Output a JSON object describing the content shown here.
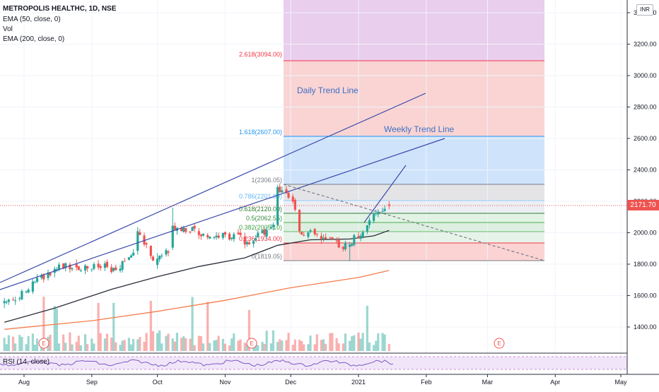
{
  "header": {
    "symbol_line": "METROPOLIS HEALTHC, 1D, NSE",
    "indicator_1": "EMA (50, close, 0)",
    "indicator_2": "Vol",
    "indicator_3": "EMA (200, close, 0)"
  },
  "rsi_label": "RSI (14, close)",
  "currency_button": "INR",
  "last_price_label": "2171.70",
  "chart_data": {
    "type": "candlestick",
    "title": "METROPOLIS HEALTHC, 1D, NSE",
    "xlabel": "",
    "ylabel": "",
    "ylim": [
      1180,
      3640
    ],
    "x_ticks": [
      "Aug",
      "Sep",
      "Oct",
      "Nov",
      "Dec",
      "2021",
      "Feb",
      "Mar",
      "Apr",
      "May"
    ],
    "y_ticks": [
      1400,
      1600,
      1800,
      2000,
      2200,
      2400,
      2600,
      2800,
      3000,
      3200,
      3400
    ],
    "y_tick_labels": [
      "1400.00",
      "1600.00",
      "1800.00",
      "2000.00",
      "2200.00",
      "2400.00",
      "2600.00",
      "2800.00",
      "3000.00",
      "3200.00",
      "3400.00"
    ],
    "last_price": 2171.7,
    "series": [
      {
        "name": "EMA (50, close, 0)",
        "color": "#2a2e39",
        "points": [
          [
            "2020-07-23",
            1430
          ],
          [
            "2020-08-15",
            1520
          ],
          [
            "2020-09-10",
            1640
          ],
          [
            "2020-10-01",
            1720
          ],
          [
            "2020-10-20",
            1785
          ],
          [
            "2020-11-10",
            1840
          ],
          [
            "2020-11-25",
            1920
          ],
          [
            "2020-12-10",
            1955
          ],
          [
            "2020-12-28",
            1960
          ],
          [
            "2021-01-08",
            1980
          ],
          [
            "2021-01-15",
            2015
          ]
        ]
      },
      {
        "name": "EMA (200, close, 0)",
        "color": "#f57c4c",
        "points": [
          [
            "2020-07-23",
            1385
          ],
          [
            "2020-09-01",
            1440
          ],
          [
            "2020-10-01",
            1500
          ],
          [
            "2020-11-01",
            1570
          ],
          [
            "2020-12-01",
            1650
          ],
          [
            "2021-01-01",
            1715
          ],
          [
            "2021-01-15",
            1760
          ]
        ]
      }
    ],
    "candles": [
      {
        "date": "2020-07-23",
        "o": 1552,
        "h": 1585,
        "l": 1520,
        "c": 1565
      },
      {
        "date": "2020-08-05",
        "o": 1625,
        "h": 1705,
        "l": 1610,
        "c": 1690
      },
      {
        "date": "2020-08-15",
        "o": 1745,
        "h": 1785,
        "l": 1715,
        "c": 1770
      },
      {
        "date": "2020-08-25",
        "o": 1800,
        "h": 1830,
        "l": 1760,
        "c": 1780
      },
      {
        "date": "2020-09-10",
        "o": 1780,
        "h": 1800,
        "l": 1740,
        "c": 1750
      },
      {
        "date": "2020-09-22",
        "o": 1885,
        "h": 2035,
        "l": 1860,
        "c": 2010
      },
      {
        "date": "2020-10-01",
        "o": 1795,
        "h": 1870,
        "l": 1770,
        "c": 1835
      },
      {
        "date": "2020-10-08",
        "o": 1905,
        "h": 2160,
        "l": 1890,
        "c": 2045
      },
      {
        "date": "2020-10-20",
        "o": 2010,
        "h": 2030,
        "l": 1960,
        "c": 1985
      },
      {
        "date": "2020-11-10",
        "o": 1975,
        "h": 2000,
        "l": 1900,
        "c": 1925
      },
      {
        "date": "2020-11-25",
        "o": 2050,
        "h": 2306,
        "l": 2040,
        "c": 2290
      },
      {
        "date": "2020-12-05",
        "o": 2145,
        "h": 2150,
        "l": 1995,
        "c": 2010
      },
      {
        "date": "2020-12-15",
        "o": 1980,
        "h": 2000,
        "l": 1930,
        "c": 1960
      },
      {
        "date": "2020-12-28",
        "o": 1910,
        "h": 1940,
        "l": 1819,
        "c": 1925
      },
      {
        "date": "2021-01-08",
        "o": 2075,
        "h": 2130,
        "l": 2060,
        "c": 2120
      },
      {
        "date": "2021-01-15",
        "o": 2180,
        "h": 2200,
        "l": 2150,
        "c": 2172
      }
    ],
    "volume_bars": "Vol",
    "fibonacci": [
      {
        "label": "0(1819.05)",
        "value": 1819.05
      },
      {
        "label": "0.236(1934.00)",
        "value": 1934.0
      },
      {
        "label": "0.382(2005.10)",
        "value": 2005.1
      },
      {
        "label": "0.5(2062.55)",
        "value": 2062.55
      },
      {
        "label": "0.618(2120.00)",
        "value": 2120.0
      },
      {
        "label": "0.786(2201.80)",
        "value": 2201.8
      },
      {
        "label": "1(2306.05)",
        "value": 2306.05
      },
      {
        "label": "1.618(2607.00)",
        "value": 2607.0
      },
      {
        "label": "2.618(3094.00)",
        "value": 3094.0
      }
    ],
    "annotations": [
      "Daily Trend Line",
      "Weekly Trend Line"
    ],
    "earnings_markers": [
      "E",
      "E",
      "E"
    ]
  },
  "colors": {
    "up": "#26a69a",
    "down": "#ef5350",
    "trend": "#3949ab",
    "rsi": "#7e57c2",
    "fib_text": "#2196f3",
    "fib_red": "#f23645"
  }
}
